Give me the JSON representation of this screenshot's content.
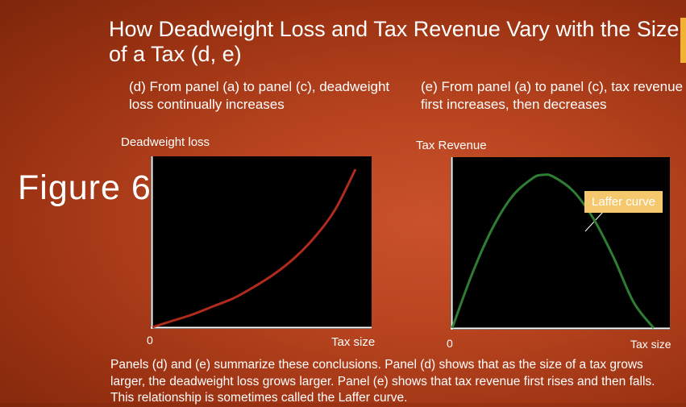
{
  "slide": {
    "title": "How Deadweight Loss and Tax Revenue Vary with the Size of a Tax (d, e)",
    "figure_label": "Figure 6",
    "subhead_d": "(d) From panel (a) to panel (c), deadweight loss continually increases",
    "subhead_e": "(e) From panel (a) to panel (c), tax revenue first increases, then decreases",
    "caption": "Panels (d) and (e) summarize these conclusions. Panel (d) shows that as the size of a tax grows larger, the deadweight loss grows larger. Panel (e) shows that tax revenue first rises and then falls. This relationship is sometimes called the Laffer curve.",
    "colors": {
      "accent": "#f2b233",
      "curve_d": "#b02a1e",
      "curve_e": "#2e7d32",
      "callout": "#f6c86e"
    }
  },
  "chart_data": [
    {
      "type": "line",
      "title": "",
      "ylabel": "Deadweight loss",
      "xlabel": "Tax size",
      "origin_label": "0",
      "shape": "convex increasing",
      "series": [
        {
          "x": [
            0,
            0.1,
            0.2,
            0.3,
            0.4,
            0.5,
            0.6,
            0.7,
            0.8,
            0.9,
            1.0
          ],
          "y": [
            0,
            0.04,
            0.08,
            0.13,
            0.18,
            0.25,
            0.33,
            0.43,
            0.56,
            0.73,
            0.98
          ]
        }
      ]
    },
    {
      "type": "line",
      "title": "",
      "ylabel": "Tax Revenue",
      "xlabel": "Tax size",
      "origin_label": "0",
      "shape": "inverted U",
      "annotation": "Laffer curve",
      "series": [
        {
          "x": [
            0,
            0.1,
            0.2,
            0.3,
            0.4,
            0.45,
            0.5,
            0.6,
            0.7,
            0.8,
            0.9,
            1.0
          ],
          "y": [
            0,
            0.34,
            0.62,
            0.82,
            0.93,
            0.95,
            0.94,
            0.85,
            0.68,
            0.44,
            0.16,
            0
          ]
        }
      ]
    }
  ]
}
